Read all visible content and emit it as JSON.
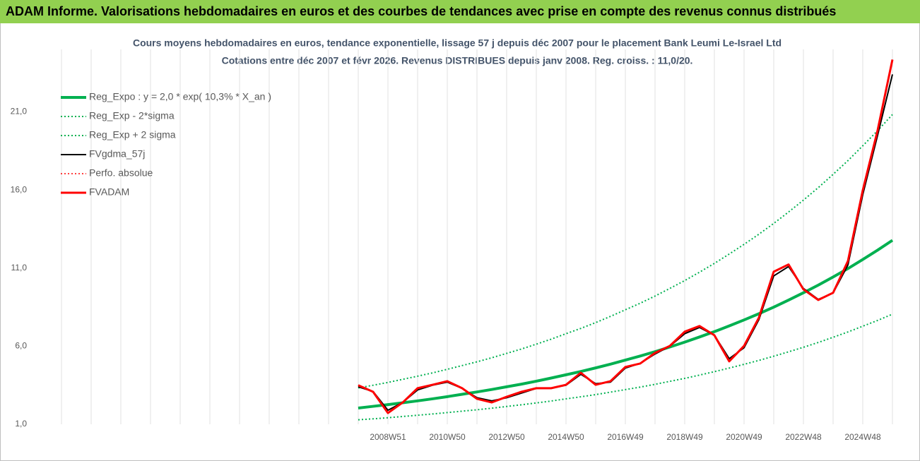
{
  "chart_data": {
    "type": "line",
    "banner": "ADAM Informe. Valorisations hebdomadaires en euros et des courbes de tendances avec prise en compte des revenus connus distribués",
    "title": "Cours moyens hebdomadaires en euros, tendance exponentielle, lissage 57 j depuis déc 2007 pour le placement Bank Leumi Le-Israel Ltd",
    "subtitle": "Cotations entre déc 2007 et févr 2026. Revenus DISTRIBUES depuis janv 2008. Reg. croiss. : 11,0/20.",
    "categories": [
      null,
      null,
      null,
      null,
      null,
      null,
      null,
      null,
      null,
      null,
      null,
      null,
      null,
      null,
      null,
      null,
      null,
      null,
      null,
      null,
      null,
      null,
      "2008W51",
      null,
      null,
      null,
      "2010W50",
      null,
      null,
      null,
      "2012W50",
      null,
      null,
      null,
      "2014W50",
      null,
      null,
      null,
      "2016W49",
      null,
      null,
      null,
      "2018W49",
      null,
      null,
      null,
      "2020W49",
      null,
      null,
      null,
      "2022W48",
      null,
      null,
      null,
      "2024W48",
      null,
      null
    ],
    "ylim": [
      1,
      25
    ],
    "yticks": [
      {
        "value": 1,
        "label": "1,0"
      },
      {
        "value": 6,
        "label": "6,0"
      },
      {
        "value": 11,
        "label": "11,0"
      },
      {
        "value": 16,
        "label": "16,0"
      },
      {
        "value": 21,
        "label": "21,0"
      }
    ],
    "xgrid": true,
    "legend": "upper left",
    "series": [
      {
        "name": "Reg_Expo : y = 2,0 * exp( 10,3% *  X_an )",
        "color": "#00b050",
        "style": "solid",
        "width": 4,
        "values": [
          null,
          null,
          null,
          null,
          null,
          null,
          null,
          null,
          null,
          null,
          null,
          null,
          null,
          null,
          null,
          null,
          null,
          null,
          null,
          null,
          2.04,
          2.15,
          2.26,
          2.38,
          2.5,
          2.63,
          2.77,
          2.92,
          3.07,
          3.23,
          3.4,
          3.57,
          3.76,
          3.96,
          4.17,
          4.38,
          4.61,
          4.85,
          5.11,
          5.37,
          5.65,
          5.95,
          6.26,
          6.59,
          6.93,
          7.3,
          7.68,
          8.08,
          8.5,
          8.95,
          9.42,
          9.91,
          10.43,
          10.97,
          11.55,
          12.15,
          12.78
        ]
      },
      {
        "name": "Reg_Exp - 2*sigma",
        "color": "#00b050",
        "style": "dotted",
        "width": 2,
        "values": [
          null,
          null,
          null,
          null,
          null,
          null,
          null,
          null,
          null,
          null,
          null,
          null,
          null,
          null,
          null,
          null,
          null,
          null,
          null,
          null,
          1.29,
          1.35,
          1.42,
          1.5,
          1.58,
          1.66,
          1.75,
          1.84,
          1.93,
          2.03,
          2.14,
          2.25,
          2.37,
          2.49,
          2.63,
          2.76,
          2.9,
          3.06,
          3.22,
          3.38,
          3.56,
          3.75,
          3.94,
          4.15,
          4.37,
          4.6,
          4.84,
          5.09,
          5.36,
          5.64,
          5.93,
          6.24,
          6.57,
          6.91,
          7.28,
          7.65,
          8.05
        ]
      },
      {
        "name": "Reg_Exp + 2 sigma",
        "color": "#00b050",
        "style": "dotted",
        "width": 2,
        "values": [
          null,
          null,
          null,
          null,
          null,
          null,
          null,
          null,
          null,
          null,
          null,
          null,
          null,
          null,
          null,
          null,
          null,
          null,
          null,
          null,
          3.33,
          3.5,
          3.68,
          3.88,
          4.08,
          4.29,
          4.52,
          4.76,
          5.0,
          5.26,
          5.54,
          5.82,
          6.13,
          6.45,
          6.8,
          7.14,
          7.51,
          7.91,
          8.33,
          8.75,
          9.21,
          9.7,
          10.2,
          10.74,
          11.3,
          11.9,
          12.52,
          13.17,
          13.86,
          14.59,
          15.35,
          16.15,
          17.0,
          17.88,
          18.83,
          19.8,
          20.83
        ]
      },
      {
        "name": "FVgdma_57j",
        "color": "#000000",
        "style": "solid",
        "width": 2,
        "values": [
          null,
          null,
          null,
          null,
          null,
          null,
          null,
          null,
          null,
          null,
          null,
          null,
          null,
          null,
          null,
          null,
          null,
          null,
          null,
          null,
          3.4,
          3.1,
          1.9,
          2.4,
          3.2,
          3.5,
          3.7,
          3.3,
          2.7,
          2.5,
          2.7,
          3.0,
          3.3,
          3.3,
          3.5,
          4.2,
          3.6,
          3.7,
          4.6,
          4.9,
          5.5,
          6.0,
          6.8,
          7.2,
          6.7,
          5.2,
          5.9,
          7.7,
          10.5,
          11.1,
          9.7,
          9.0,
          9.4,
          11.2,
          15.7,
          19.5,
          23.4
        ]
      },
      {
        "name": "Perfo. absolue",
        "color": "#ff0000",
        "style": "dotted",
        "width": 1.5,
        "values": [
          null,
          null,
          null,
          null,
          null,
          null,
          null,
          null,
          null,
          null,
          null,
          null,
          null,
          null,
          null,
          null,
          null,
          null,
          null,
          null,
          3.5,
          3.08,
          1.72,
          2.4,
          3.31,
          3.53,
          3.76,
          3.31,
          2.63,
          2.4,
          2.76,
          3.08,
          3.31,
          3.31,
          3.53,
          4.3,
          3.53,
          3.76,
          4.67,
          4.89,
          5.57,
          6.02,
          6.93,
          7.29,
          6.7,
          5.03,
          6.02,
          7.83,
          10.77,
          11.23,
          9.64,
          8.96,
          9.42,
          11.45,
          15.98,
          19.82,
          24.35
        ]
      },
      {
        "name": "FVADAM",
        "color": "#ff0000",
        "style": "solid",
        "width": 3,
        "values": [
          null,
          null,
          null,
          null,
          null,
          null,
          null,
          null,
          null,
          null,
          null,
          null,
          null,
          null,
          null,
          null,
          null,
          null,
          null,
          null,
          3.5,
          3.08,
          1.72,
          2.4,
          3.31,
          3.53,
          3.76,
          3.31,
          2.63,
          2.4,
          2.76,
          3.08,
          3.31,
          3.31,
          3.53,
          4.3,
          3.53,
          3.76,
          4.67,
          4.89,
          5.57,
          6.02,
          6.93,
          7.29,
          6.7,
          5.03,
          6.02,
          7.83,
          10.77,
          11.23,
          9.64,
          8.96,
          9.42,
          11.45,
          15.98,
          19.82,
          24.35
        ]
      }
    ]
  }
}
